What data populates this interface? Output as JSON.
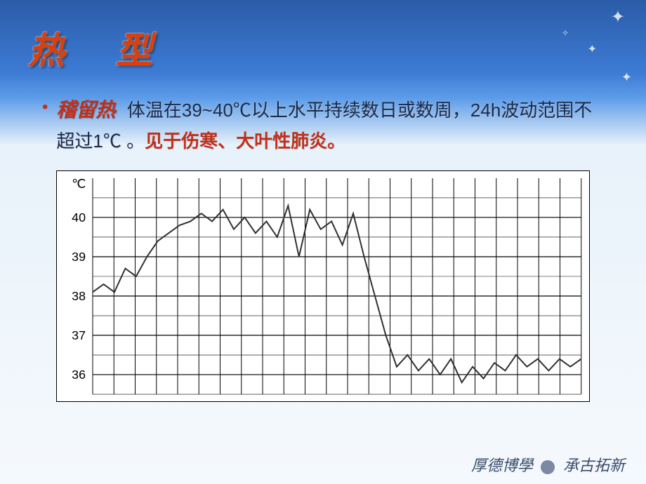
{
  "title": "热 型",
  "bullet": {
    "term": "稽留热",
    "desc_part1": "体温在39~40℃以上水平持续数日或数周，24h波动范围不超过1℃ 。",
    "desc_highlight": "见于伤寒、大叶性肺炎。"
  },
  "chart": {
    "type": "line",
    "y_unit": "℃",
    "ylim": [
      35.5,
      41
    ],
    "ytick_labels": [
      "36",
      "37",
      "38",
      "39",
      "40"
    ],
    "ytick_values": [
      36,
      37,
      38,
      39,
      40
    ],
    "x_count": 23,
    "grid_major_color": "#000000",
    "grid_minor_color": "#000000",
    "line_color": "#303030",
    "line_width": 2,
    "background_color": "#ffffff",
    "values": [
      38.1,
      38.3,
      38.1,
      38.7,
      38.5,
      39.0,
      39.4,
      39.6,
      39.8,
      39.9,
      40.1,
      39.9,
      40.2,
      39.7,
      40.0,
      39.6,
      39.9,
      39.5,
      40.3,
      39.0,
      40.2,
      39.7,
      39.9,
      39.3,
      40.1,
      39.0,
      38.0,
      37.0,
      36.2,
      36.5,
      36.1,
      36.4,
      36.0,
      36.4,
      35.8,
      36.2,
      35.9,
      36.3,
      36.1,
      36.5,
      36.2,
      36.4,
      36.1,
      36.4,
      36.2,
      36.4
    ]
  },
  "footer": {
    "left": "厚德博學",
    "right": "承古拓新"
  },
  "colors": {
    "title_color": "#d84010",
    "term_color": "#c03018",
    "desc_color": "#1a2a4a",
    "bg_top": "#2a5ca8",
    "bg_bottom": "#f5f9fd"
  }
}
